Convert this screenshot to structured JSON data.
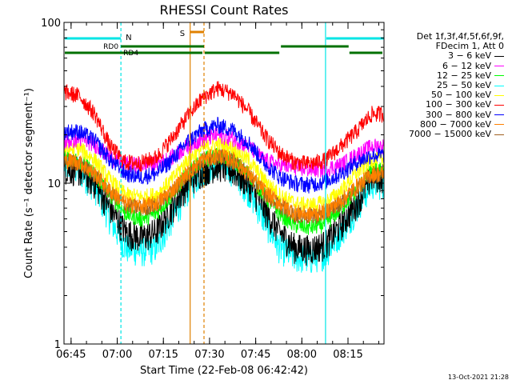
{
  "chart_data": {
    "type": "line",
    "title": "RHESSI Count Rates",
    "xlabel": "Start Time (22-Feb-08 06:42:42)",
    "ylabel": "Count Rate (s⁻¹ detector segment⁻¹)",
    "yscale": "log",
    "ylim": [
      1,
      100
    ],
    "y_tick_labels": [
      "1",
      "10",
      "100"
    ],
    "xlim_minutes": [
      0,
      104
    ],
    "x_tick_labels": [
      "06:45",
      "07:00",
      "07:15",
      "07:30",
      "07:45",
      "08:00",
      "08:15"
    ],
    "x_tick_minutes": [
      2.3,
      17.3,
      32.3,
      47.3,
      62.3,
      77.3,
      92.3
    ],
    "x": [
      0,
      5,
      10,
      15,
      20,
      25,
      30,
      35,
      40,
      45,
      50,
      55,
      60,
      65,
      70,
      75,
      80,
      85,
      90,
      95,
      100
    ],
    "series": [
      {
        "name": "3 - 6 keV",
        "color": "#000000",
        "values": [
          12.5,
          12.0,
          10.0,
          7.0,
          5.0,
          4.6,
          5.0,
          7.0,
          10.0,
          12.0,
          13.0,
          12.0,
          10.0,
          7.0,
          5.0,
          4.0,
          3.9,
          4.2,
          5.5,
          7.5,
          11.0
        ]
      },
      {
        "name": "6 - 12 keV",
        "color": "#ff00ff",
        "values": [
          18.0,
          19.0,
          17.5,
          14.5,
          13.2,
          13.0,
          13.3,
          14.5,
          17.0,
          19.0,
          20.0,
          19.0,
          17.0,
          14.0,
          13.0,
          12.5,
          12.2,
          12.3,
          13.0,
          15.0,
          17.0
        ]
      },
      {
        "name": "12 - 25 keV",
        "color": "#00ff00",
        "values": [
          14.5,
          14.0,
          11.5,
          8.5,
          6.5,
          6.0,
          6.5,
          8.5,
          11.5,
          14.0,
          15.0,
          14.0,
          11.5,
          8.5,
          6.5,
          5.5,
          5.3,
          5.6,
          7.0,
          9.0,
          12.0
        ]
      },
      {
        "name": "25 - 50 keV",
        "color": "#00ffff",
        "values": [
          13.0,
          12.0,
          9.5,
          6.0,
          4.0,
          3.8,
          4.0,
          6.0,
          9.0,
          12.0,
          13.5,
          12.0,
          9.0,
          6.0,
          4.0,
          3.5,
          3.4,
          3.7,
          5.0,
          7.0,
          10.0
        ]
      },
      {
        "name": "50 - 100 keV",
        "color": "#ffff00",
        "values": [
          16.0,
          16.5,
          14.0,
          10.5,
          8.5,
          8.2,
          8.5,
          10.5,
          14.0,
          16.5,
          17.5,
          16.5,
          14.0,
          10.5,
          8.5,
          7.5,
          7.3,
          7.6,
          9.0,
          11.5,
          14.0
        ]
      },
      {
        "name": "100 - 300 keV",
        "color": "#ff0000",
        "values": [
          37.0,
          35.0,
          27.0,
          17.0,
          13.5,
          13.4,
          14.5,
          19.0,
          26.0,
          34.0,
          39.0,
          36.0,
          28.0,
          20.0,
          15.5,
          13.5,
          13.2,
          14.0,
          17.0,
          21.0,
          27.0
        ]
      },
      {
        "name": "300 - 800 keV",
        "color": "#0000ff",
        "values": [
          21.0,
          21.0,
          18.5,
          14.0,
          11.5,
          11.0,
          11.5,
          14.0,
          18.0,
          21.5,
          23.0,
          21.5,
          18.0,
          13.5,
          11.0,
          10.0,
          9.8,
          10.3,
          11.5,
          13.5,
          15.0
        ]
      },
      {
        "name": "800 - 7000 keV",
        "color": "#ff8000",
        "values": [
          14.0,
          13.5,
          11.5,
          9.0,
          7.5,
          7.2,
          7.5,
          9.0,
          11.5,
          14.0,
          15.0,
          14.0,
          11.5,
          9.0,
          7.5,
          6.6,
          6.4,
          6.7,
          7.8,
          9.5,
          11.5
        ]
      },
      {
        "name": "7000 - 15000 keV",
        "color": "#a06020",
        "values": [
          13.8,
          13.3,
          11.3,
          8.8,
          7.3,
          7.0,
          7.3,
          8.8,
          11.3,
          13.8,
          14.8,
          13.8,
          11.3,
          8.8,
          7.3,
          6.4,
          6.2,
          6.5,
          7.6,
          9.3,
          11.3
        ]
      }
    ],
    "legend_header": [
      "Det 1f,3f,4f,5f,6f,9f,",
      "FDecim 1, Att 0"
    ],
    "annotations": {
      "night_intervals": [
        [
          0,
          18.5
        ],
        [
          85,
          104
        ]
      ],
      "night_label": "N",
      "night_color": "#00e5e5",
      "saa_label": "S",
      "saa_line_minute": 41.0,
      "saa_end_minute": 45.5,
      "saa_color": "#e08000",
      "rd_label_1": "RD0",
      "rd_label_2": "RD4",
      "rd_color": "#007000",
      "rd_segments_upper": [
        [
          18.5,
          45.5
        ],
        [
          70.5,
          92.5
        ]
      ],
      "rd_segments_lower": [
        [
          0,
          45.5
        ],
        [
          45.5,
          70.5
        ],
        [
          92.5,
          104
        ]
      ]
    },
    "timestamp": "13-Oct-2021 21:28"
  }
}
